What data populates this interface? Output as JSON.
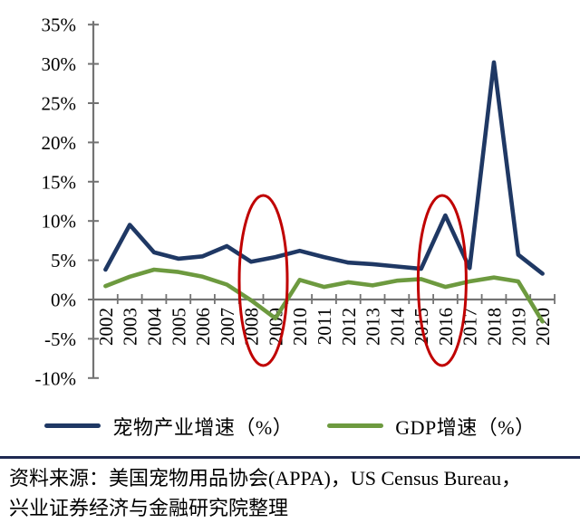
{
  "chart_data": {
    "type": "line",
    "title": "",
    "x": [
      2002,
      2003,
      2004,
      2005,
      2006,
      2007,
      2008,
      2009,
      2010,
      2011,
      2012,
      2013,
      2014,
      2015,
      2016,
      2017,
      2018,
      2019,
      2020
    ],
    "xtick_labels": [
      "2002",
      "2003",
      "2004",
      "2005",
      "2006",
      "2007",
      "2008",
      "2009",
      "2010",
      "2011",
      "2012",
      "2013",
      "2014",
      "2015",
      "2016",
      "2017",
      "2018",
      "2019",
      "2020"
    ],
    "series": [
      {
        "name": "宠物产业增速（%）",
        "color": "#1F3864",
        "values": [
          3.8,
          9.5,
          6.0,
          5.2,
          5.5,
          6.8,
          4.8,
          5.4,
          6.2,
          5.4,
          4.7,
          4.5,
          4.2,
          3.9,
          10.7,
          4.0,
          30.2,
          5.7,
          3.3
        ]
      },
      {
        "name": "GDP增速（%）",
        "color": "#6D9A3F",
        "values": [
          1.7,
          2.9,
          3.8,
          3.5,
          2.9,
          1.9,
          -0.1,
          -2.4,
          2.5,
          1.6,
          2.2,
          1.8,
          2.4,
          2.6,
          1.6,
          2.3,
          2.8,
          2.3,
          -2.8
        ]
      }
    ],
    "ylim": [
      -10,
      35
    ],
    "ytick_step": 5,
    "ytick_labels": [
      "35%",
      "30%",
      "25%",
      "20%",
      "15%",
      "10%",
      "5%",
      "0%",
      "-5%",
      "-10%"
    ],
    "grid": false,
    "legend_position": "bottom",
    "annotations": [
      {
        "type": "ellipse",
        "around_years": "2008-2009",
        "color": "#C00000"
      },
      {
        "type": "ellipse",
        "around_years": "2016",
        "color": "#C00000"
      }
    ]
  },
  "footer": {
    "source_line1": "资料来源：美国宠物用品协会(APPA)，US Census Bureau，",
    "source_line2": "兴业证券经济与金融研究院整理"
  },
  "colors": {
    "axis": "#737373",
    "text": "#000000",
    "divider": "#1F2A52",
    "highlight": "#C00000",
    "background": "#FFFFFF"
  }
}
